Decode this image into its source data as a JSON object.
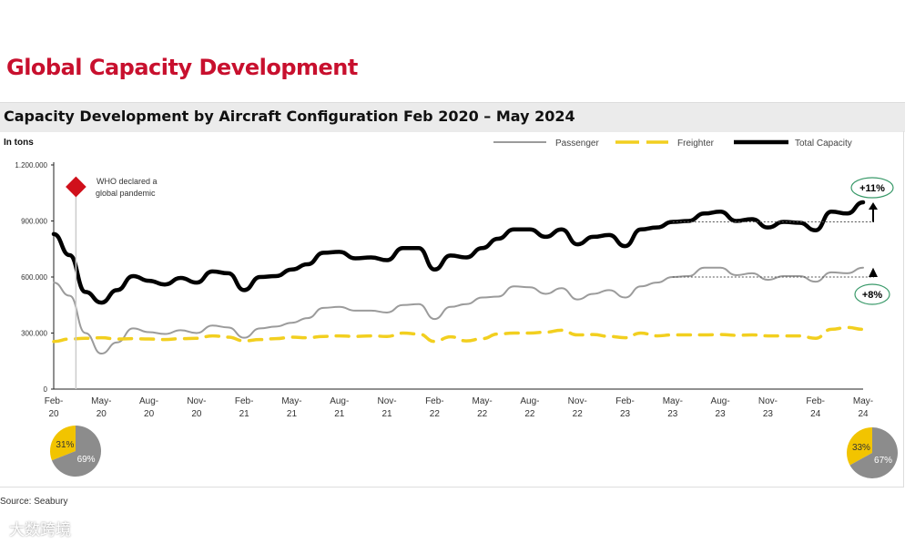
{
  "title": "Global Capacity Development",
  "subtitle": "Capacity Development by Aircraft Configuration Feb 2020 – May 2024",
  "source": "Source: Seabury",
  "watermark": "大数跨境",
  "chart_data": {
    "type": "line",
    "title": "Capacity Development by Aircraft Configuration Feb 2020 – May 2024",
    "ylabel": "In tons",
    "ylim": [
      0,
      1200000
    ],
    "yticks": [
      "0",
      "300.000",
      "600.000",
      "900.000",
      "1.200.000"
    ],
    "ytick_values": [
      0,
      300000,
      600000,
      900000,
      1200000
    ],
    "xtick_labels": [
      [
        "Feb-",
        "20"
      ],
      [
        "May-",
        "20"
      ],
      [
        "Aug-",
        "20"
      ],
      [
        "Nov-",
        "20"
      ],
      [
        "Feb-",
        "21"
      ],
      [
        "May-",
        "21"
      ],
      [
        "Aug-",
        "21"
      ],
      [
        "Nov-",
        "21"
      ],
      [
        "Feb-",
        "22"
      ],
      [
        "May-",
        "22"
      ],
      [
        "Aug-",
        "22"
      ],
      [
        "Nov-",
        "22"
      ],
      [
        "Feb-",
        "23"
      ],
      [
        "May-",
        "23"
      ],
      [
        "Aug-",
        "23"
      ],
      [
        "Nov-",
        "23"
      ],
      [
        "Feb-",
        "24"
      ],
      [
        "May-",
        "24"
      ]
    ],
    "months": 52,
    "legend": {
      "placement": "top-right",
      "entries": [
        "Passenger",
        "Freighter",
        "Total Capacity"
      ]
    },
    "colors": {
      "Passenger": "#9b9b9b",
      "Freighter": "#f2cf1f",
      "Total Capacity": "#000000"
    },
    "series": [
      {
        "name": "Passenger",
        "values": [
          570000,
          500000,
          300000,
          190000,
          250000,
          325000,
          305000,
          295000,
          315000,
          300000,
          340000,
          330000,
          275000,
          325000,
          335000,
          355000,
          380000,
          435000,
          440000,
          420000,
          420000,
          410000,
          450000,
          455000,
          375000,
          440000,
          455000,
          490000,
          495000,
          550000,
          545000,
          510000,
          540000,
          480000,
          510000,
          530000,
          490000,
          550000,
          570000,
          600000,
          605000,
          650000,
          650000,
          610000,
          620000,
          585000,
          605000,
          605000,
          575000,
          625000,
          620000,
          650000
        ]
      },
      {
        "name": "Freighter",
        "values": [
          255000,
          268000,
          272000,
          275000,
          268000,
          270000,
          268000,
          265000,
          270000,
          272000,
          285000,
          278000,
          258000,
          265000,
          270000,
          278000,
          275000,
          282000,
          285000,
          282000,
          285000,
          282000,
          300000,
          295000,
          255000,
          280000,
          258000,
          270000,
          295000,
          300000,
          300000,
          305000,
          315000,
          290000,
          292000,
          282000,
          275000,
          300000,
          285000,
          290000,
          290000,
          290000,
          292000,
          288000,
          290000,
          285000,
          285000,
          285000,
          272000,
          320000,
          330000,
          320000
        ]
      },
      {
        "name": "Total Capacity",
        "values": [
          830000,
          717000,
          520000,
          463000,
          530000,
          605000,
          580000,
          560000,
          595000,
          570000,
          630000,
          620000,
          530000,
          600000,
          605000,
          640000,
          668000,
          730000,
          735000,
          700000,
          705000,
          690000,
          755000,
          755000,
          640000,
          715000,
          705000,
          755000,
          805000,
          855000,
          855000,
          815000,
          855000,
          775000,
          815000,
          825000,
          765000,
          855000,
          865000,
          895000,
          900000,
          940000,
          950000,
          900000,
          910000,
          865000,
          895000,
          890000,
          850000,
          950000,
          940000,
          1000000
        ]
      }
    ],
    "annotations": [
      {
        "text_line1": "WHO declared a",
        "text_line2": "global pandemic",
        "month_index": 1.4
      },
      {
        "text": "+11%",
        "series": "Total Capacity",
        "baseline": 895000
      },
      {
        "text": "+8%",
        "series": "Passenger",
        "baseline": 600000
      }
    ],
    "pies": [
      {
        "label": "Feb-20",
        "slices": [
          {
            "name": "Freighter",
            "value": 31,
            "label": "31%"
          },
          {
            "name": "Passenger",
            "value": 69,
            "label": "69%"
          }
        ]
      },
      {
        "label": "May-24",
        "slices": [
          {
            "name": "Freighter",
            "value": 33,
            "label": "33%"
          },
          {
            "name": "Passenger",
            "value": 67,
            "label": "67%"
          }
        ]
      }
    ]
  }
}
